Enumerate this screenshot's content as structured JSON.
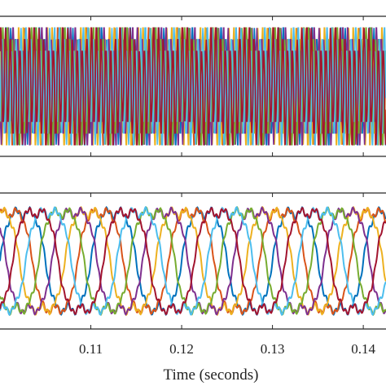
{
  "chart_data": [
    {
      "type": "line",
      "panel": "top",
      "title": "",
      "xlabel": "",
      "ylabel": "",
      "xlim": [
        0.1,
        0.1425
      ],
      "ylim": [
        -1.2,
        1.2
      ],
      "grid": false,
      "legend": "none",
      "series": [
        {
          "color": "#0072BD",
          "carrier_hz": 1900,
          "amplitude": 0.82,
          "phase": 0.0
        },
        {
          "color": "#D95319",
          "carrier_hz": 1900,
          "amplitude": 0.82,
          "phase": 1.05
        },
        {
          "color": "#EDB120",
          "carrier_hz": 1900,
          "amplitude": 0.82,
          "phase": 2.09
        },
        {
          "color": "#7E2F8E",
          "carrier_hz": 1900,
          "amplitude": 0.82,
          "phase": 3.14
        },
        {
          "color": "#77AC30",
          "carrier_hz": 1900,
          "amplitude": 0.82,
          "phase": 4.19
        },
        {
          "color": "#4DBEEE",
          "carrier_hz": 1900,
          "amplitude": 0.82,
          "phase": 5.24
        },
        {
          "color": "#A2142F",
          "carrier_hz": 1900,
          "amplitude": 0.82,
          "phase": 0.52
        }
      ]
    },
    {
      "type": "line",
      "panel": "bottom",
      "title": "",
      "xlabel": "Time (seconds)",
      "ylabel": "",
      "xlim": [
        0.1,
        0.1425
      ],
      "ylim": [
        -1.15,
        1.15
      ],
      "grid": false,
      "legend": "none",
      "x_ticks": [
        0.11,
        0.12,
        0.13,
        0.14
      ],
      "x_tick_labels": [
        "0.11",
        "0.12",
        "0.13",
        "0.14"
      ],
      "series": [
        {
          "color": "#0072BD",
          "fundamental_hz": 100,
          "amplitude": 0.95,
          "phase": 0.0
        },
        {
          "color": "#D95319",
          "fundamental_hz": 100,
          "amplitude": 0.95,
          "phase": 0.9
        },
        {
          "color": "#EDB120",
          "fundamental_hz": 100,
          "amplitude": 0.95,
          "phase": 1.8
        },
        {
          "color": "#7E2F8E",
          "fundamental_hz": 100,
          "amplitude": 0.95,
          "phase": 2.7
        },
        {
          "color": "#77AC30",
          "fundamental_hz": 100,
          "amplitude": 0.95,
          "phase": 3.6
        },
        {
          "color": "#4DBEEE",
          "fundamental_hz": 100,
          "amplitude": 0.95,
          "phase": 4.5
        },
        {
          "color": "#A2142F",
          "fundamental_hz": 100,
          "amplitude": 0.95,
          "phase": 5.4
        }
      ]
    }
  ]
}
